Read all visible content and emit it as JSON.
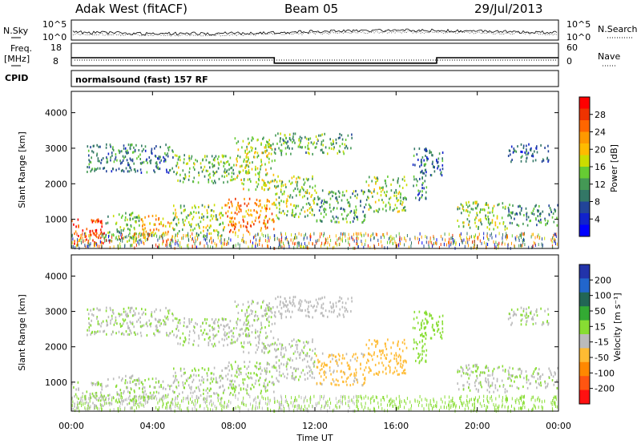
{
  "header": {
    "station": "Adak West (fitACF)",
    "beam": "Beam 05",
    "date": "29/Jul/2013"
  },
  "noise_panel": {
    "left_label": "N.Sky",
    "right_label": "N.Search",
    "left_ticks": [
      "10^5",
      "10^0"
    ],
    "right_ticks": [
      "10^5",
      "10^0"
    ]
  },
  "freq_panel": {
    "left_label_1": "Freq.",
    "left_label_2": "[MHz]",
    "right_label": "Nave",
    "left_ticks": [
      "18",
      "8"
    ],
    "right_ticks": [
      "60",
      "0"
    ],
    "cpid_label": "CPID",
    "cpid_text": "normalsound (fast) 157 RF"
  },
  "power_colorbar": {
    "label": "Power [dB]",
    "ticks": [
      "28",
      "24",
      "20",
      "16",
      "12",
      "8",
      "4"
    ],
    "colors": [
      "#ff0000",
      "#ee3300",
      "#ff6600",
      "#ff9900",
      "#ffbb00",
      "#ccdd00",
      "#66cc33",
      "#449955",
      "#337766",
      "#224499",
      "#1122cc",
      "#0000ff"
    ]
  },
  "velocity_colorbar": {
    "label": "Velocity [m s⁻¹]",
    "ticks": [
      "200",
      "100",
      "50",
      "15",
      "-15",
      "-50",
      "-100",
      "-200"
    ],
    "colors": [
      "#2233aa",
      "#2266cc",
      "#226655",
      "#33aa33",
      "#88dd33",
      "#bbbbbb",
      "#ffbb33",
      "#ff8800",
      "#ff5511",
      "#ff1111"
    ]
  },
  "chart_data": {
    "type": "heatmap",
    "xlabel": "Time UT",
    "ylabel": "Slant Range [km]",
    "x_ticks": [
      "00:00",
      "04:00",
      "08:00",
      "12:00",
      "16:00",
      "20:00",
      "00:00"
    ],
    "y_ticks": [
      "1000",
      "2000",
      "3000",
      "4000"
    ],
    "xlim": [
      0,
      24
    ],
    "ylim": [
      180,
      4600
    ],
    "power_range_db": [
      0,
      30
    ],
    "velocity_range": [
      -250,
      250
    ],
    "frequency_steps_mhz": [
      {
        "start": 0,
        "end": 10,
        "value": 11.5
      },
      {
        "start": 10,
        "end": 18,
        "value": 8.5
      },
      {
        "start": 18,
        "end": 24,
        "value": 11.5
      }
    ],
    "nave_dotted_level": 3,
    "scatter_regions": [
      {
        "t0": 0.0,
        "t1": 1.6,
        "r0": 300,
        "r1": 1000,
        "power": 27,
        "velocity": -5
      },
      {
        "t0": 1.6,
        "t1": 3.4,
        "r0": 350,
        "r1": 1200,
        "power": 12,
        "velocity": -5
      },
      {
        "t0": 3.4,
        "t1": 5.0,
        "r0": 400,
        "r1": 1100,
        "power": 20,
        "velocity": -5
      },
      {
        "t0": 5.0,
        "t1": 7.5,
        "r0": 500,
        "r1": 1400,
        "power": 14,
        "velocity": -5
      },
      {
        "t0": 7.5,
        "t1": 10.0,
        "r0": 600,
        "r1": 1600,
        "power": 22,
        "velocity": -5
      },
      {
        "t0": 10.0,
        "t1": 12.0,
        "r0": 1000,
        "r1": 2200,
        "power": 14,
        "velocity": -10
      },
      {
        "t0": 12.0,
        "t1": 14.5,
        "r0": 900,
        "r1": 1800,
        "power": 11,
        "velocity": -60
      },
      {
        "t0": 14.5,
        "t1": 16.5,
        "r0": 1200,
        "r1": 2200,
        "power": 14,
        "velocity": -70
      },
      {
        "t0": 16.8,
        "t1": 17.5,
        "r0": 1500,
        "r1": 3000,
        "power": 9,
        "velocity": 30
      },
      {
        "t0": 19.0,
        "t1": 21.5,
        "r0": 700,
        "r1": 1500,
        "power": 14,
        "velocity": -5
      },
      {
        "t0": 21.5,
        "t1": 24.0,
        "r0": 800,
        "r1": 1400,
        "power": 10,
        "velocity": -5
      },
      {
        "t0": 0.7,
        "t1": 5.0,
        "r0": 2300,
        "r1": 3100,
        "power": 9,
        "velocity": -5
      },
      {
        "t0": 5.0,
        "t1": 8.0,
        "r0": 2000,
        "r1": 2800,
        "power": 13,
        "velocity": -5
      },
      {
        "t0": 8.0,
        "t1": 10.0,
        "r0": 1800,
        "r1": 3300,
        "power": 16,
        "velocity": -5
      },
      {
        "t0": 10.0,
        "t1": 13.8,
        "r0": 2800,
        "r1": 3400,
        "power": 12,
        "velocity": -20
      },
      {
        "t0": 17.3,
        "t1": 18.3,
        "r0": 2200,
        "r1": 3000,
        "power": 8,
        "velocity": 20
      },
      {
        "t0": 21.5,
        "t1": 23.5,
        "r0": 2600,
        "r1": 3100,
        "power": 7,
        "velocity": -5
      }
    ]
  }
}
